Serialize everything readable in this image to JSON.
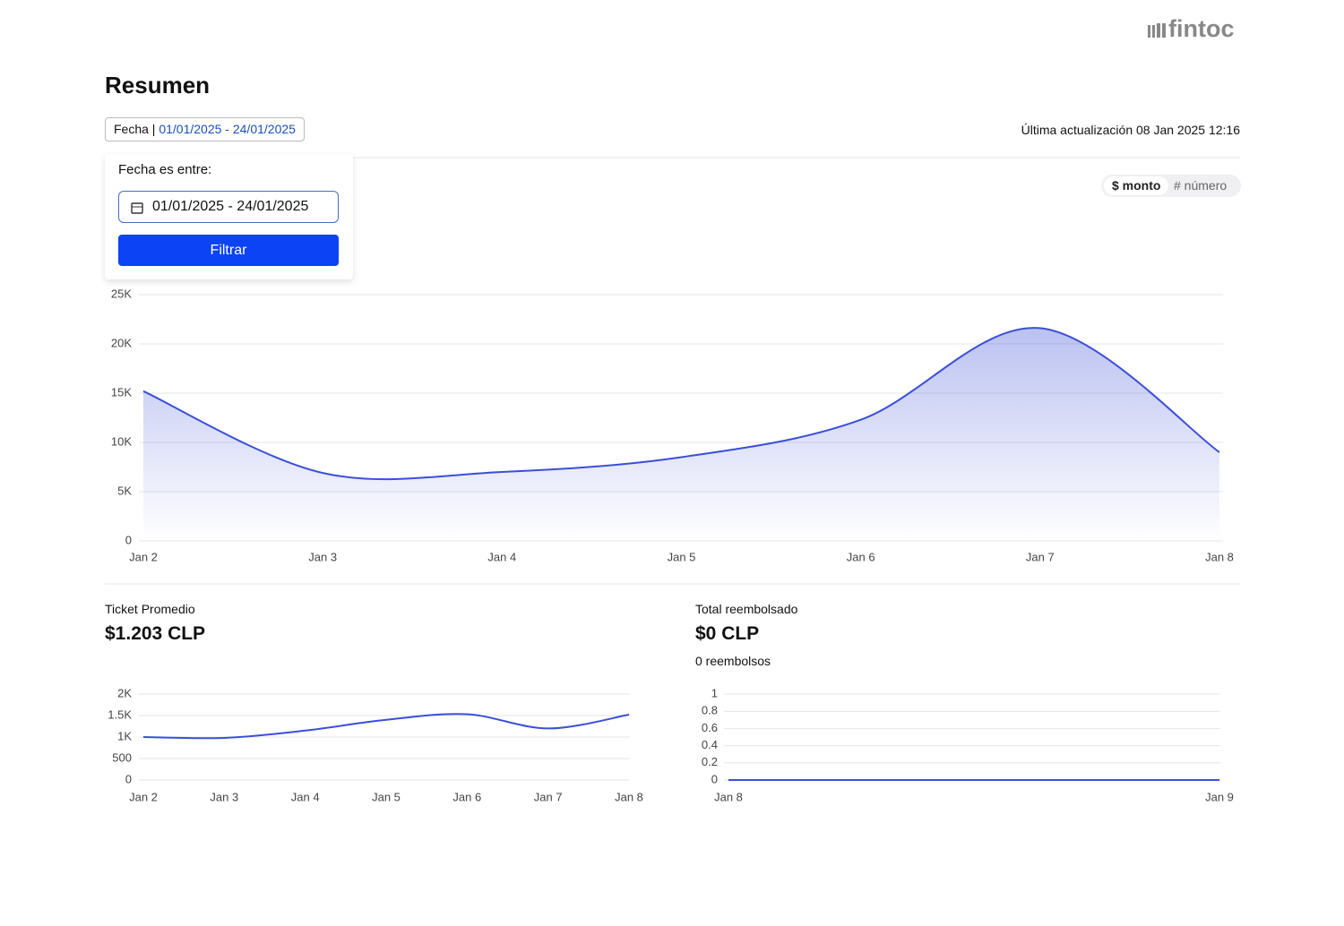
{
  "header": {
    "logo": "fintoc",
    "title": "Resumen",
    "filter_label": "Fecha",
    "filter_range": "01/01/2025 - 24/01/2025",
    "last_update": "Última actualización 08 Jan 2025 12:16"
  },
  "filter_popover": {
    "label": "Fecha es entre:",
    "input": "01/01/2025 - 24/01/2025",
    "button": "Filtrar"
  },
  "toggle": {
    "options": [
      "$ monto",
      "# número"
    ]
  },
  "cards": [
    {
      "title": "Ticket Promedio",
      "value": "$1.203 CLP"
    },
    {
      "title": "Total reembolsado",
      "value": "$0 CLP",
      "subtitle": "0 reembolsos"
    }
  ],
  "chart_data": [
    {
      "type": "line",
      "area": true,
      "color": "#3b4fd8",
      "grid": true,
      "categories": [
        "Jan 2",
        "Jan 3",
        "Jan 4",
        "Jan 5",
        "Jan 6",
        "Jan 7",
        "Jan 8"
      ],
      "values": [
        15200,
        6900,
        7000,
        8500,
        12300,
        21600,
        9000
      ],
      "ylim": [
        0,
        25000
      ],
      "yticks": [
        0,
        {
          "value": 5000,
          "label": "5K"
        },
        {
          "value": 10000,
          "label": "10K"
        },
        {
          "value": 15000,
          "label": "15K"
        },
        {
          "value": 20000,
          "label": "20K"
        },
        {
          "value": 25000,
          "label": "25K"
        }
      ]
    },
    {
      "type": "line",
      "color": "#3b4fd8",
      "grid": true,
      "categories": [
        "Jan 2",
        "Jan 3",
        "Jan 4",
        "Jan 5",
        "Jan 6",
        "Jan 7",
        "Jan 8"
      ],
      "values": [
        1000,
        980,
        1150,
        1400,
        1530,
        1200,
        1520
      ],
      "ylim": [
        0,
        2000
      ],
      "yticks": [
        0,
        500,
        {
          "value": 1000,
          "label": "1K"
        },
        {
          "value": 1500,
          "label": "1.5K"
        },
        {
          "value": 2000,
          "label": "2K"
        }
      ]
    },
    {
      "type": "line",
      "color": "#3b4fd8",
      "grid": true,
      "categories": [
        "Jan 8",
        "Jan 9"
      ],
      "values": [
        0,
        0
      ],
      "ylim": [
        0,
        1
      ],
      "yticks": [
        0,
        0.2,
        0.4,
        0.6,
        0.8,
        1
      ]
    }
  ]
}
